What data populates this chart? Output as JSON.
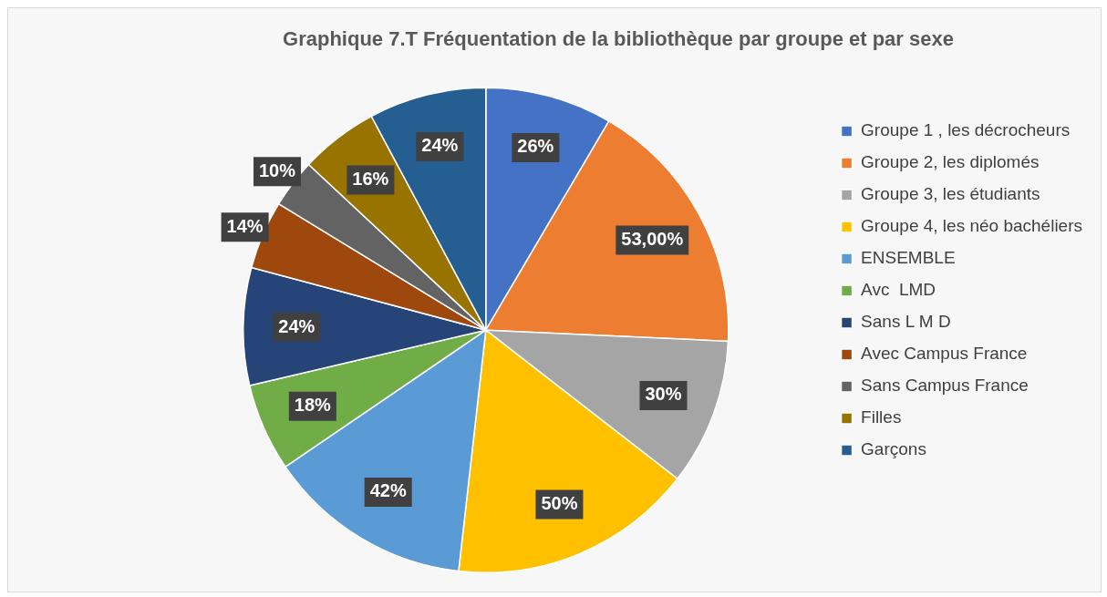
{
  "chart_data": {
    "type": "pie",
    "title": "Graphique 7.T Fréquentation de la bibliothèque par groupe et par sexe",
    "categories": [
      "Groupe 1 , les décrocheurs",
      "Groupe 2, les diplomés",
      "Groupe 3, les étudiants",
      "Groupe 4, les néo bachéliers",
      "ENSEMBLE",
      "Avc  LMD",
      "Sans L M D",
      "Avec Campus France",
      "Sans Campus France",
      "Filles",
      "Garçons"
    ],
    "values": [
      26,
      53,
      30,
      50,
      42,
      18,
      24,
      14,
      10,
      16,
      24
    ],
    "colors": [
      "#4472c4",
      "#ed7d31",
      "#a5a5a5",
      "#ffc000",
      "#5b9bd5",
      "#70ad47",
      "#264478",
      "#9e480e",
      "#636363",
      "#997300",
      "#255e91"
    ],
    "value_labels": [
      "26%",
      "53,00%",
      "30%",
      "50%",
      "42%",
      "18%",
      "24%",
      "14%",
      "10%",
      "16%",
      "24%"
    ],
    "legend": "right"
  }
}
